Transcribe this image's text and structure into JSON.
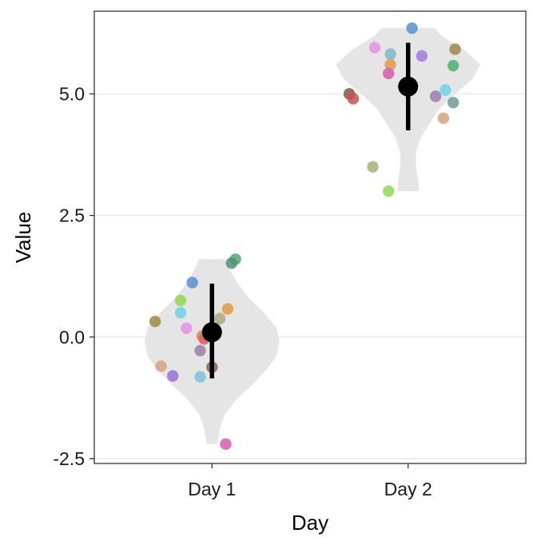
{
  "chart_data": {
    "type": "violin",
    "xlabel": "Day",
    "ylabel": "Value",
    "categories": [
      "Day 1",
      "Day 2"
    ],
    "ylim": [
      -2.6,
      6.7
    ],
    "yticks": [
      -2.5,
      0.0,
      2.5,
      5.0
    ],
    "ytick_labels": [
      "-2.5",
      "0.0",
      "2.5",
      "5.0"
    ],
    "grid": "horizontal",
    "violin_color": "#e5e5e5",
    "summary": [
      {
        "category": "Day 1",
        "mean": 0.1,
        "low": -0.85,
        "high": 1.1
      },
      {
        "category": "Day 2",
        "mean": 5.15,
        "low": 4.25,
        "high": 6.05
      }
    ],
    "violins": [
      {
        "category": "Day 1",
        "profile": [
          [
            -2.2,
            0.07
          ],
          [
            -1.9,
            0.1
          ],
          [
            -1.6,
            0.16
          ],
          [
            -1.3,
            0.3
          ],
          [
            -1.0,
            0.5
          ],
          [
            -0.7,
            0.68
          ],
          [
            -0.4,
            0.82
          ],
          [
            -0.1,
            0.86
          ],
          [
            0.2,
            0.82
          ],
          [
            0.5,
            0.66
          ],
          [
            0.8,
            0.47
          ],
          [
            1.1,
            0.33
          ],
          [
            1.4,
            0.22
          ],
          [
            1.6,
            0.17
          ]
        ]
      },
      {
        "category": "Day 2",
        "profile": [
          [
            3.0,
            0.14
          ],
          [
            3.2,
            0.13
          ],
          [
            3.5,
            0.1
          ],
          [
            3.8,
            0.1
          ],
          [
            4.1,
            0.16
          ],
          [
            4.4,
            0.28
          ],
          [
            4.7,
            0.4
          ],
          [
            5.0,
            0.6
          ],
          [
            5.3,
            0.82
          ],
          [
            5.6,
            0.92
          ],
          [
            5.9,
            0.72
          ],
          [
            6.2,
            0.42
          ],
          [
            6.35,
            0.34
          ]
        ]
      }
    ],
    "points": [
      {
        "category": "Day 1",
        "y": 1.6,
        "offset": 0.12,
        "color": "#5aa46e"
      },
      {
        "category": "Day 1",
        "y": 1.52,
        "offset": 0.1,
        "color": "#4e8f6e"
      },
      {
        "category": "Day 1",
        "y": 1.12,
        "offset": -0.1,
        "color": "#5b8fcf"
      },
      {
        "category": "Day 1",
        "y": 0.75,
        "offset": -0.16,
        "color": "#8fd84f"
      },
      {
        "category": "Day 1",
        "y": 0.58,
        "offset": 0.08,
        "color": "#e39a45"
      },
      {
        "category": "Day 1",
        "y": 0.5,
        "offset": -0.16,
        "color": "#6ed3e8"
      },
      {
        "category": "Day 1",
        "y": 0.38,
        "offset": 0.04,
        "color": "#a9ad7a"
      },
      {
        "category": "Day 1",
        "y": 0.32,
        "offset": -0.29,
        "color": "#9c8a4a"
      },
      {
        "category": "Day 1",
        "y": 0.18,
        "offset": -0.13,
        "color": "#e890e0"
      },
      {
        "category": "Day 1",
        "y": 0.02,
        "offset": -0.05,
        "color": "#c98a5a"
      },
      {
        "category": "Day 1",
        "y": -0.04,
        "offset": -0.04,
        "color": "#e06060"
      },
      {
        "category": "Day 1",
        "y": -0.28,
        "offset": -0.06,
        "color": "#9a7fa8"
      },
      {
        "category": "Day 1",
        "y": -0.6,
        "offset": -0.26,
        "color": "#d4a57e"
      },
      {
        "category": "Day 1",
        "y": -0.62,
        "offset": 0.0,
        "color": "#8c6450"
      },
      {
        "category": "Day 1",
        "y": -0.8,
        "offset": -0.2,
        "color": "#9a70d8"
      },
      {
        "category": "Day 1",
        "y": -0.82,
        "offset": -0.06,
        "color": "#7ec0d8"
      },
      {
        "category": "Day 1",
        "y": -2.2,
        "offset": 0.07,
        "color": "#d95aa8"
      },
      {
        "category": "Day 2",
        "y": 6.35,
        "offset": 0.02,
        "color": "#5b8fcf"
      },
      {
        "category": "Day 2",
        "y": 5.95,
        "offset": -0.17,
        "color": "#e890e0"
      },
      {
        "category": "Day 2",
        "y": 5.92,
        "offset": 0.24,
        "color": "#9c8a4a"
      },
      {
        "category": "Day 2",
        "y": 5.82,
        "offset": -0.09,
        "color": "#7ab8cc"
      },
      {
        "category": "Day 2",
        "y": 5.78,
        "offset": 0.07,
        "color": "#a07ad8"
      },
      {
        "category": "Day 2",
        "y": 5.6,
        "offset": -0.09,
        "color": "#e39a45"
      },
      {
        "category": "Day 2",
        "y": 5.58,
        "offset": 0.23,
        "color": "#4caf6e"
      },
      {
        "category": "Day 2",
        "y": 5.42,
        "offset": -0.1,
        "color": "#d95aa8"
      },
      {
        "category": "Day 2",
        "y": 5.08,
        "offset": 0.19,
        "color": "#6ed3e8"
      },
      {
        "category": "Day 2",
        "y": 5.0,
        "offset": -0.3,
        "color": "#8c5050"
      },
      {
        "category": "Day 2",
        "y": 4.95,
        "offset": 0.14,
        "color": "#9a7fa8"
      },
      {
        "category": "Day 2",
        "y": 4.9,
        "offset": -0.28,
        "color": "#c85050"
      },
      {
        "category": "Day 2",
        "y": 4.82,
        "offset": 0.23,
        "color": "#6e9a9a"
      },
      {
        "category": "Day 2",
        "y": 4.5,
        "offset": 0.18,
        "color": "#d4a57e"
      },
      {
        "category": "Day 2",
        "y": 3.5,
        "offset": -0.18,
        "color": "#a9ad7a"
      },
      {
        "category": "Day 2",
        "y": 3.0,
        "offset": -0.1,
        "color": "#8fd84f"
      }
    ]
  }
}
